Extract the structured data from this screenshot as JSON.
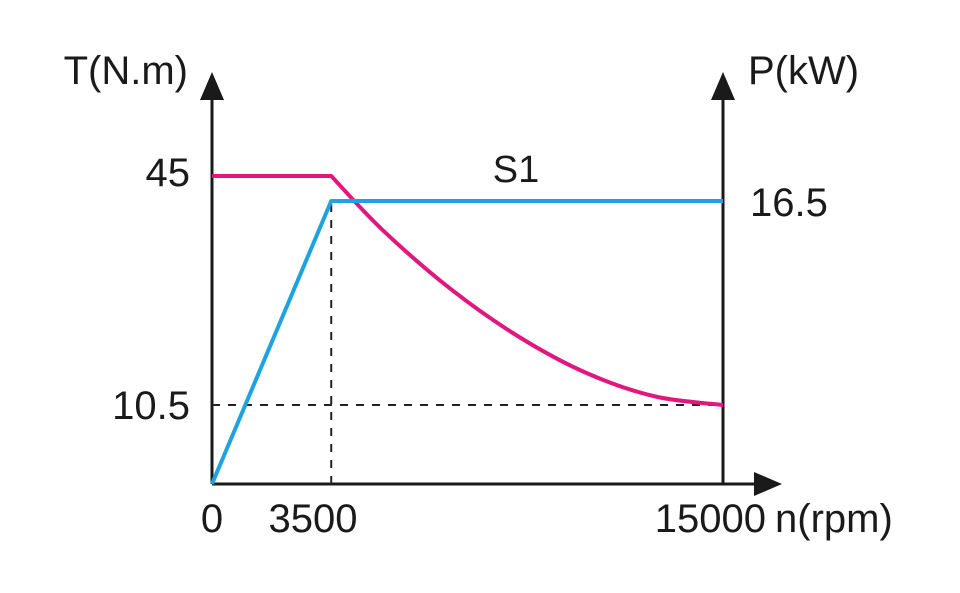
{
  "chart_data": {
    "type": "line",
    "title": "",
    "xlabel": "n(rpm)",
    "ylabel_left": "T(N.m)",
    "ylabel_right": "P(kW)",
    "x_ticks": [
      "0",
      "3500",
      "15000"
    ],
    "y_left_ticks": [
      "10.5",
      "45"
    ],
    "y_right_ticks": [
      "16.5"
    ],
    "annotation": "S1",
    "grid": false,
    "series": [
      {
        "axis": "left",
        "color": "#e0177f",
        "points": [
          [
            0,
            45
          ],
          [
            3500,
            45
          ],
          [
            5000,
            36.9
          ],
          [
            7000,
            28
          ],
          [
            9000,
            20.8
          ],
          [
            11000,
            15.3
          ],
          [
            13000,
            11.8
          ],
          [
            15000,
            10.5
          ]
        ]
      },
      {
        "axis": "right",
        "color": "#1fa3e0",
        "points": [
          [
            0,
            0
          ],
          [
            3500,
            16.5
          ],
          [
            15000,
            16.5
          ]
        ]
      }
    ],
    "reference_lines": [
      {
        "orientation": "vertical",
        "axis": "x",
        "value": 3500
      },
      {
        "orientation": "horizontal",
        "axis": "left",
        "value": 10.5
      }
    ]
  }
}
